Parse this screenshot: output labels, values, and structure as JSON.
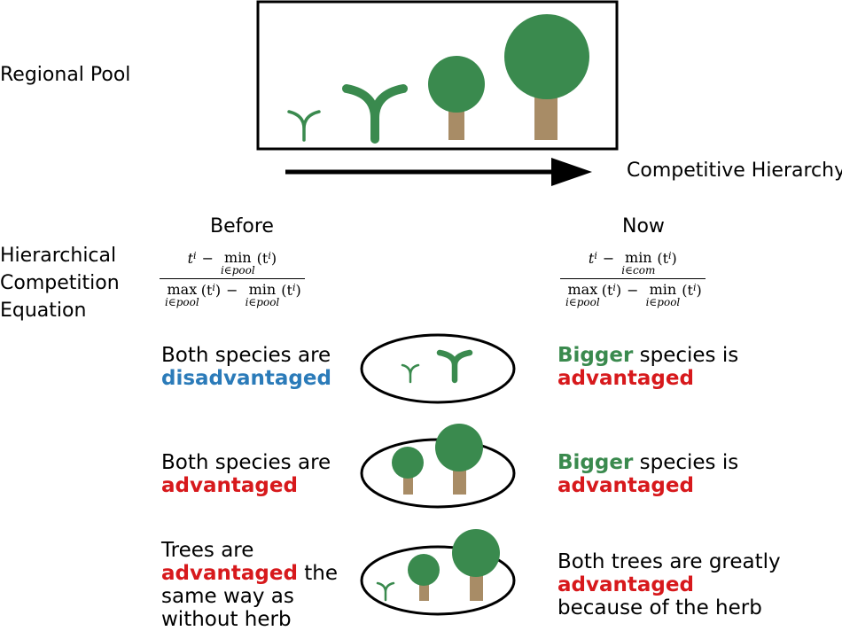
{
  "labels": {
    "regional_pool": "Regional Pool",
    "competitive_hierarchy": "Competitive Hierarchy",
    "equation_line1": "Hierarchical",
    "equation_line2": "Competition",
    "equation_line3": "Equation",
    "before": "Before",
    "now": "Now"
  },
  "equations": {
    "before": {
      "numerator_var": "t",
      "minus": "−",
      "min_op": "min",
      "min_sub": "i∈pool",
      "arg": "(t",
      "max_op": "max",
      "max_sub": "i∈pool",
      "den_min_sub": "i∈pool"
    },
    "now": {
      "numerator_var": "t",
      "minus": "−",
      "min_op": "min",
      "min_sub": "i∈com",
      "arg": "(t",
      "max_op": "max",
      "max_sub": "i∈pool",
      "den_min_sub": "i∈pool"
    }
  },
  "rows": [
    {
      "before": {
        "l1": "Both species are",
        "l2": "disadvantaged"
      },
      "now": {
        "l1_strong": "Bigger",
        "l1_rest": " species is",
        "l2": "advantaged"
      }
    },
    {
      "before": {
        "l1": "Both species are",
        "l2": "advantaged"
      },
      "now": {
        "l1_strong": "Bigger",
        "l1_rest": " species is",
        "l2": "advantaged"
      }
    },
    {
      "before": {
        "l1": "Trees are",
        "l2_strong": "advantaged",
        "l2_rest": " the",
        "l3": "same way as",
        "l4": "without herb"
      },
      "now": {
        "l1": "Both trees are greatly",
        "l2": "advantaged",
        "l3": "because of the herb"
      }
    }
  ],
  "colors": {
    "plant_green": "#3a8a4e",
    "trunk_brown": "#a88c66",
    "advantaged_red": "#d7191c",
    "disadvantaged_blue": "#2b7bb9"
  }
}
